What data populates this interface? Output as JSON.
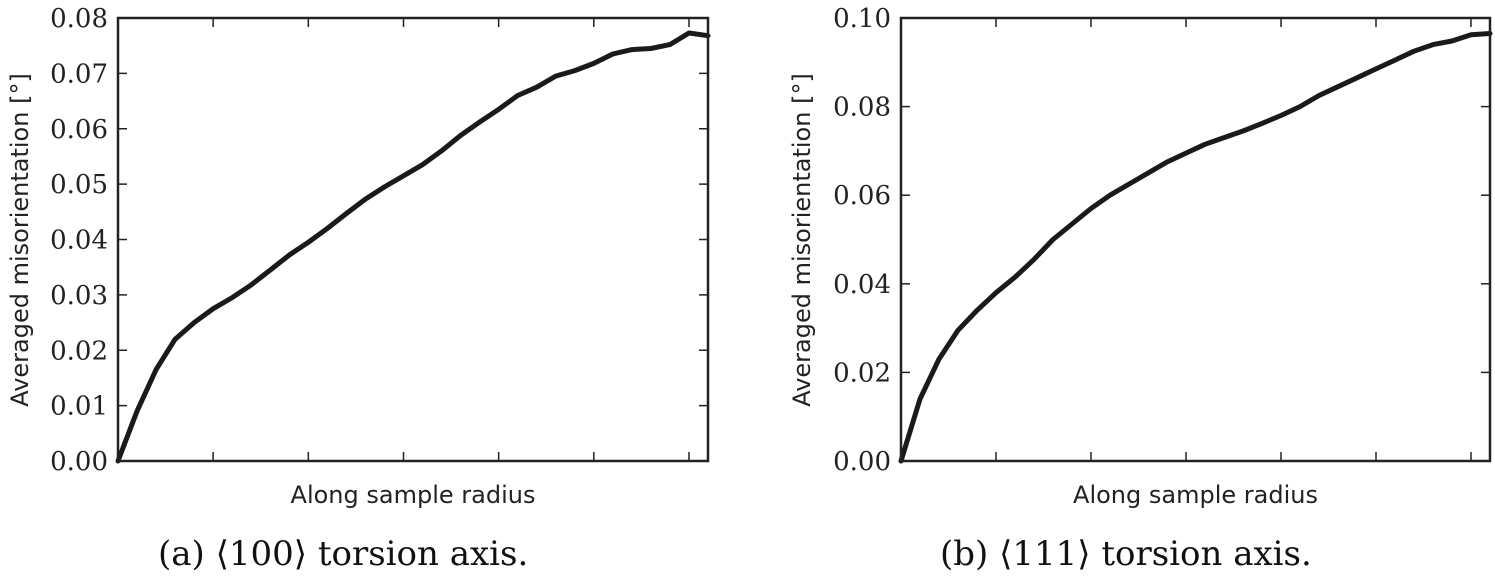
{
  "chart_data": [
    {
      "type": "line",
      "title": "",
      "caption": "(a) ⟨100⟩ torsion axis.",
      "xlabel": "Along sample radius",
      "ylabel": "Averaged misorientation [°]",
      "ylim": [
        0,
        0.08
      ],
      "yticks": [
        "0.00",
        "0.01",
        "0.02",
        "0.03",
        "0.04",
        "0.05",
        "0.06",
        "0.07",
        "0.08"
      ],
      "yticks_values": [
        0,
        0.01,
        0.02,
        0.03,
        0.04,
        0.05,
        0.06,
        0.07,
        0.08
      ],
      "xlim": [
        0,
        6.2
      ],
      "xticks": [
        1,
        2,
        3,
        4,
        5,
        6
      ],
      "xticklabels_shown": false,
      "grid": false,
      "x": [
        0,
        0.2,
        0.4,
        0.6,
        0.8,
        1.0,
        1.2,
        1.4,
        1.6,
        1.8,
        2.0,
        2.2,
        2.4,
        2.6,
        2.8,
        3.0,
        3.2,
        3.4,
        3.6,
        3.8,
        4.0,
        4.2,
        4.4,
        4.6,
        4.8,
        5.0,
        5.2,
        5.4,
        5.6,
        5.8,
        6.0,
        6.2
      ],
      "values": [
        0.0,
        0.009,
        0.0165,
        0.022,
        0.025,
        0.0275,
        0.0295,
        0.0318,
        0.0345,
        0.0372,
        0.0395,
        0.042,
        0.0447,
        0.0473,
        0.0495,
        0.0515,
        0.0535,
        0.056,
        0.0588,
        0.0612,
        0.0635,
        0.066,
        0.0675,
        0.0695,
        0.0705,
        0.0718,
        0.0735,
        0.0743,
        0.0745,
        0.0752,
        0.0773,
        0.0768
      ]
    },
    {
      "type": "line",
      "title": "",
      "caption": "(b) ⟨111⟩ torsion axis.",
      "xlabel": "Along sample radius",
      "ylabel": "Averaged misorientation [°]",
      "ylim": [
        0,
        0.1
      ],
      "yticks": [
        "0.00",
        "0.02",
        "0.04",
        "0.06",
        "0.08",
        "0.10"
      ],
      "yticks_values": [
        0,
        0.02,
        0.04,
        0.06,
        0.08,
        0.1
      ],
      "xlim": [
        0,
        6.2
      ],
      "xticks": [
        1,
        2,
        3,
        4,
        5,
        6
      ],
      "xticklabels_shown": false,
      "grid": false,
      "x": [
        0,
        0.2,
        0.4,
        0.6,
        0.8,
        1.0,
        1.2,
        1.4,
        1.6,
        1.8,
        2.0,
        2.2,
        2.4,
        2.6,
        2.8,
        3.0,
        3.2,
        3.4,
        3.6,
        3.8,
        4.0,
        4.2,
        4.4,
        4.6,
        4.8,
        5.0,
        5.2,
        5.4,
        5.6,
        5.8,
        6.0,
        6.2
      ],
      "values": [
        0.0,
        0.014,
        0.023,
        0.0295,
        0.034,
        0.038,
        0.0415,
        0.0455,
        0.05,
        0.0535,
        0.057,
        0.06,
        0.0625,
        0.065,
        0.0675,
        0.0695,
        0.0715,
        0.073,
        0.0745,
        0.0762,
        0.078,
        0.08,
        0.0825,
        0.0845,
        0.0865,
        0.0885,
        0.0905,
        0.0925,
        0.094,
        0.0948,
        0.0962,
        0.0965
      ]
    }
  ]
}
